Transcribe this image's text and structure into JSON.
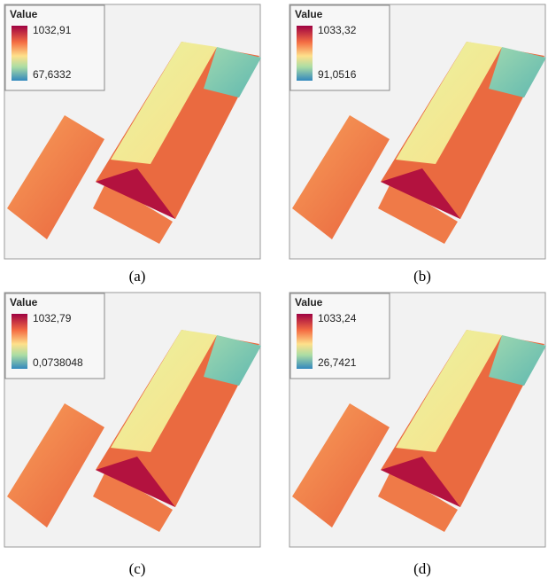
{
  "panels": [
    {
      "legend_title": "Value",
      "max_label": "1032,91",
      "min_label": "67,6332",
      "caption": "(a)"
    },
    {
      "legend_title": "Value",
      "max_label": "1033,32",
      "min_label": "91,0516",
      "caption": "(b)"
    },
    {
      "legend_title": "Value",
      "max_label": "1032,79",
      "min_label": "0,0738048",
      "caption": "(c)"
    },
    {
      "legend_title": "Value",
      "max_label": "1033,24",
      "min_label": "26,7421",
      "caption": "(d)"
    }
  ]
}
